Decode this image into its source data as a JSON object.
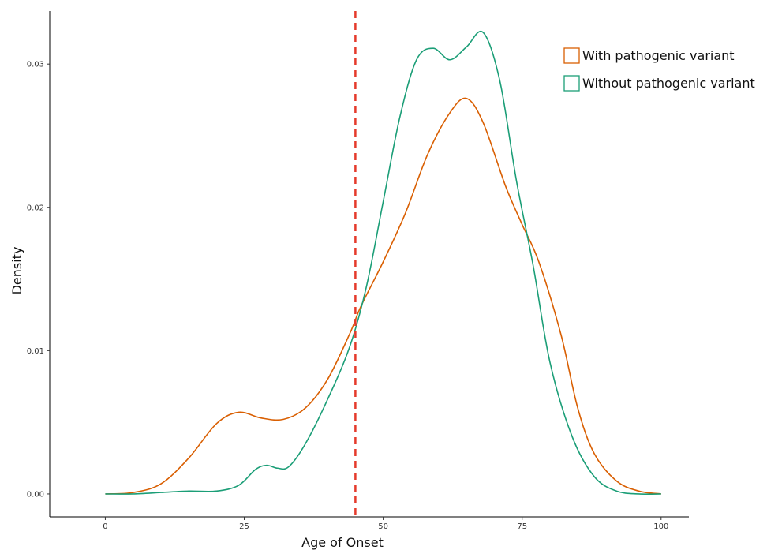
{
  "chart_data": {
    "type": "line",
    "title": "",
    "xlabel": "Age of Onset",
    "ylabel": "Density",
    "xlim": [
      -10,
      105
    ],
    "ylim": [
      -0.0016,
      0.0337
    ],
    "grid": false,
    "legend_position": "top-right",
    "x_ticks": [
      0,
      25,
      50,
      75,
      100
    ],
    "x_tick_labels": [
      "0",
      "25",
      "50",
      "75",
      "100"
    ],
    "y_ticks": [
      0.0,
      0.01,
      0.02,
      0.03
    ],
    "y_tick_labels": [
      "0.00",
      "0.01",
      "0.02",
      "0.03"
    ],
    "reference_line": {
      "orientation": "vertical",
      "x": 45,
      "style": "dashed",
      "color": "#e53a2b"
    },
    "series": [
      {
        "name": "With pathogenic variant",
        "color": "#d95f02",
        "points": [
          [
            0,
            0.0
          ],
          [
            5,
            0.0001
          ],
          [
            10,
            0.0007
          ],
          [
            15,
            0.0025
          ],
          [
            20,
            0.0049
          ],
          [
            24,
            0.0057
          ],
          [
            28,
            0.0053
          ],
          [
            32,
            0.0052
          ],
          [
            36,
            0.006
          ],
          [
            40,
            0.008
          ],
          [
            44,
            0.0112
          ],
          [
            46,
            0.0131
          ],
          [
            50,
            0.0162
          ],
          [
            54,
            0.0196
          ],
          [
            58,
            0.0237
          ],
          [
            62,
            0.0266
          ],
          [
            65,
            0.0276
          ],
          [
            68,
            0.0259
          ],
          [
            72,
            0.0215
          ],
          [
            75,
            0.0188
          ],
          [
            78,
            0.0162
          ],
          [
            82,
            0.0111
          ],
          [
            85,
            0.006
          ],
          [
            88,
            0.0028
          ],
          [
            92,
            0.0009
          ],
          [
            96,
            0.0002
          ],
          [
            100,
            0.0
          ]
        ]
      },
      {
        "name": "Without pathogenic variant",
        "color": "#1b9e77",
        "points": [
          [
            0,
            0.0
          ],
          [
            5,
            0.0
          ],
          [
            10,
            0.0001
          ],
          [
            15,
            0.0002
          ],
          [
            20,
            0.0002
          ],
          [
            24,
            0.0006
          ],
          [
            27,
            0.0017
          ],
          [
            29,
            0.002
          ],
          [
            31,
            0.0018
          ],
          [
            33,
            0.0019
          ],
          [
            36,
            0.0035
          ],
          [
            40,
            0.0066
          ],
          [
            44,
            0.0103
          ],
          [
            47,
            0.0145
          ],
          [
            50,
            0.0204
          ],
          [
            53,
            0.0263
          ],
          [
            56,
            0.0303
          ],
          [
            59,
            0.0311
          ],
          [
            62,
            0.0303
          ],
          [
            65,
            0.0312
          ],
          [
            68,
            0.0322
          ],
          [
            71,
            0.0288
          ],
          [
            74,
            0.0218
          ],
          [
            77,
            0.0159
          ],
          [
            80,
            0.0092
          ],
          [
            84,
            0.004
          ],
          [
            88,
            0.0012
          ],
          [
            92,
            0.0002
          ],
          [
            96,
            0.0
          ],
          [
            100,
            0.0
          ]
        ]
      }
    ]
  }
}
